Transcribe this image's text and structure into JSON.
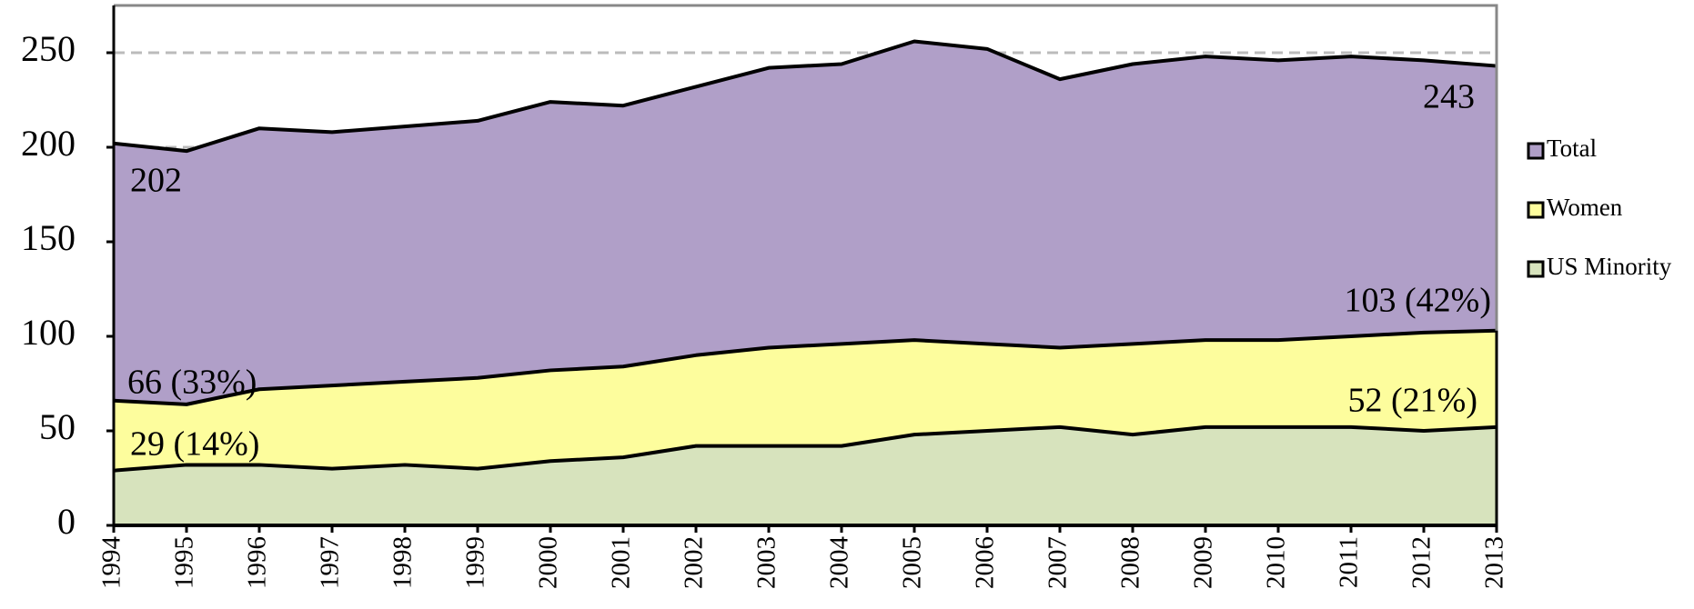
{
  "chart_data": {
    "type": "area",
    "categories": [
      "1994",
      "1995",
      "1996",
      "1997",
      "1998",
      "1999",
      "2000",
      "2001",
      "2002",
      "2003",
      "2004",
      "2005",
      "2006",
      "2007",
      "2008",
      "2009",
      "2010",
      "2011",
      "2012",
      "2013"
    ],
    "series": [
      {
        "name": "Total",
        "color": "#b09fc8",
        "values": [
          202,
          198,
          210,
          208,
          211,
          214,
          224,
          222,
          232,
          242,
          244,
          256,
          252,
          236,
          244,
          248,
          246,
          248,
          246,
          243
        ]
      },
      {
        "name": "Women",
        "color": "#fdfd9d",
        "values": [
          66,
          64,
          72,
          74,
          76,
          78,
          82,
          84,
          90,
          94,
          96,
          98,
          96,
          94,
          96,
          98,
          98,
          100,
          102,
          103
        ]
      },
      {
        "name": "US Minority",
        "color": "#d7e3bd",
        "values": [
          29,
          32,
          32,
          30,
          32,
          30,
          34,
          36,
          42,
          42,
          42,
          48,
          50,
          52,
          48,
          52,
          52,
          52,
          50,
          52
        ]
      }
    ],
    "annotations": [
      "202",
      "243",
      "66 (33%)",
      "103 (42%)",
      "29 (14%)",
      "52 (21%)"
    ],
    "ylim": [
      0,
      275
    ],
    "yticks": [
      0,
      50,
      100,
      150,
      200,
      250
    ],
    "grid": true,
    "legend": "right"
  }
}
